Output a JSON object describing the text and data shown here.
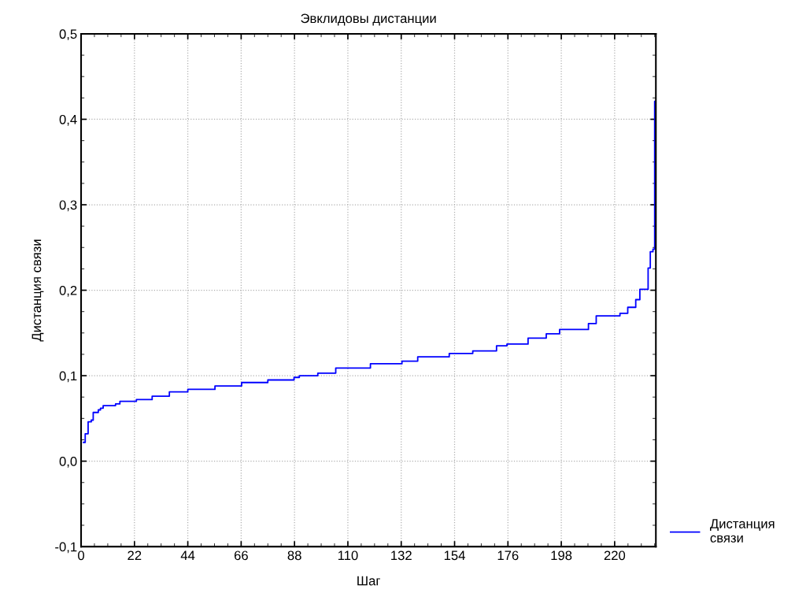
{
  "chart_data": {
    "type": "step",
    "title": "Эвклидовы дистанции",
    "xlabel": "Шаг",
    "ylabel": "Дистанция связи",
    "series": [
      {
        "name": "Дистанция связи",
        "color": "#0000ff",
        "x": [
          1,
          1.7,
          2.9,
          4.2,
          5,
          7.1,
          8,
          9.1,
          14.2,
          16,
          22.8,
          29.3,
          36.4,
          44,
          55.2,
          66.2,
          77,
          87.8,
          90,
          97.6,
          105,
          119.3,
          132.3,
          138.8,
          151.8,
          161.5,
          171.3,
          175.6,
          184.3,
          191.8,
          197.3,
          209.2,
          212.4,
          222.2,
          225.4,
          228.7,
          230.4,
          233.8,
          234.7,
          235.8,
          236.5,
          237
        ],
        "values": [
          0.022,
          0.032,
          0.046,
          0.048,
          0.057,
          0.06,
          0.062,
          0.065,
          0.067,
          0.07,
          0.072,
          0.076,
          0.081,
          0.084,
          0.088,
          0.092,
          0.095,
          0.098,
          0.1,
          0.103,
          0.109,
          0.114,
          0.117,
          0.122,
          0.126,
          0.129,
          0.135,
          0.137,
          0.144,
          0.149,
          0.154,
          0.161,
          0.17,
          0.173,
          0.18,
          0.189,
          0.201,
          0.226,
          0.245,
          0.248,
          0.421,
          0.421
        ]
      }
    ],
    "xlim": [
      0,
      237
    ],
    "xticks": [
      0,
      22,
      44,
      66,
      88,
      110,
      132,
      154,
      176,
      198,
      220
    ],
    "ylim": [
      -0.1,
      0.5
    ],
    "yticks": [
      {
        "value": -0.1,
        "label": "-0,1"
      },
      {
        "value": 0.0,
        "label": "0,0"
      },
      {
        "value": 0.1,
        "label": "0,1"
      },
      {
        "value": 0.2,
        "label": "0,2"
      },
      {
        "value": 0.3,
        "label": "0,3"
      },
      {
        "value": 0.4,
        "label": "0,4"
      },
      {
        "value": 0.5,
        "label": "0,5"
      }
    ],
    "grid": true,
    "legend": "bottom right",
    "line_style": "solid"
  }
}
